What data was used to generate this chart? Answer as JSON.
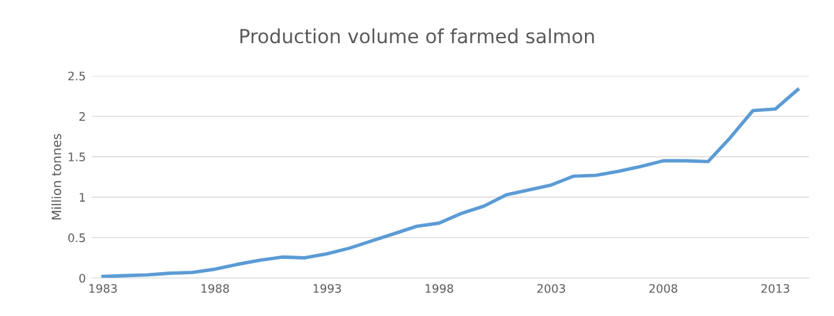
{
  "chart_data": {
    "type": "line",
    "title": "Production volume of farmed salmon",
    "ylabel": "Million tonnes",
    "categories": [
      "1983",
      null,
      null,
      null,
      null,
      "1988",
      null,
      null,
      null,
      null,
      "1993",
      null,
      null,
      null,
      null,
      "1998",
      null,
      null,
      null,
      null,
      "2003",
      null,
      null,
      null,
      null,
      "2008",
      null,
      null,
      null,
      null,
      "2013",
      null
    ],
    "series": [
      {
        "color": "#5b9bd5",
        "values": [
          0.02,
          0.03,
          0.04,
          0.06,
          0.07,
          0.11,
          0.17,
          0.22,
          0.26,
          0.25,
          0.3,
          0.37,
          0.46,
          0.55,
          0.64,
          0.68,
          0.8,
          0.89,
          1.03,
          1.09,
          1.15,
          1.26,
          1.27,
          1.32,
          1.38,
          1.45,
          1.45,
          1.44,
          1.74,
          2.07,
          2.09,
          2.33
        ]
      }
    ],
    "ylim": [
      0,
      2.5
    ],
    "yticks": [
      0,
      0.5,
      1,
      1.5,
      2,
      2.5
    ],
    "grid": "y",
    "legend": false,
    "marker": "none",
    "line_style": "solid"
  }
}
